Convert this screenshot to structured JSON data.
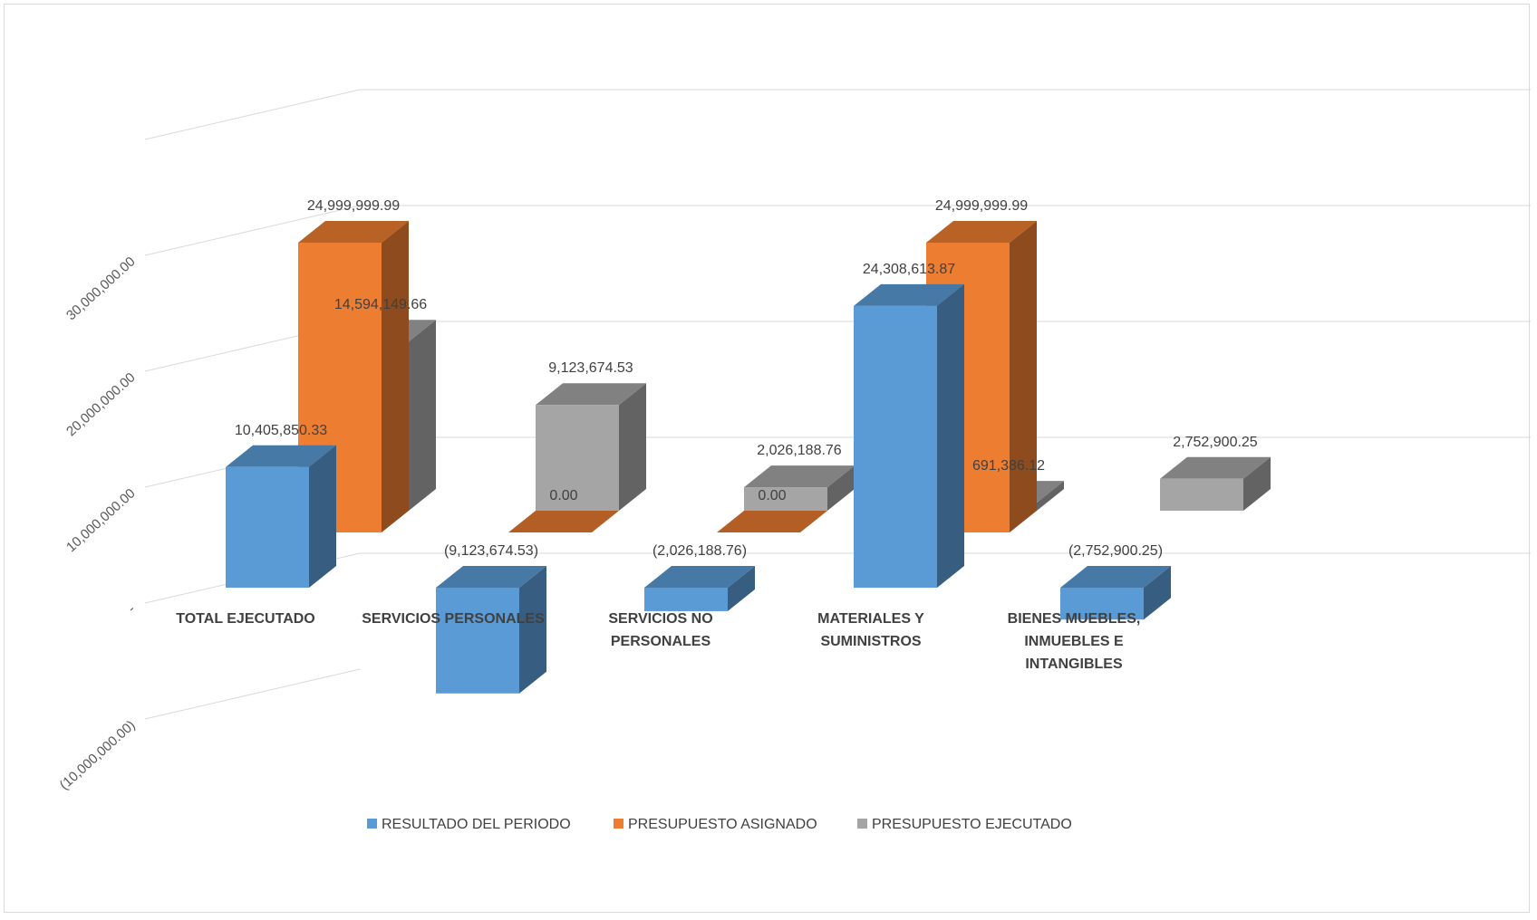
{
  "chart_data": {
    "type": "bar",
    "subtype": "3d-clustered-column",
    "title": "",
    "xlabel": "",
    "ylabel": "",
    "categories": [
      [
        "TOTAL EJECUTADO"
      ],
      [
        "SERVICIOS PERSONALES"
      ],
      [
        "SERVICIOS NO",
        "PERSONALES"
      ],
      [
        "MATERIALES Y",
        "SUMINISTROS"
      ],
      [
        "BIENES MUEBLES,",
        "INMUEBLES E",
        "INTANGIBLES"
      ]
    ],
    "ylim": [
      -10000000,
      30000000
    ],
    "y_ticks": [
      -10000000,
      0,
      10000000,
      20000000,
      30000000
    ],
    "y_tick_labels": [
      "(10,000,000.00)",
      "-",
      "10,000,000.00",
      "20,000,000.00",
      "30,000,000.00"
    ],
    "grid": true,
    "legend_position": "bottom",
    "series": [
      {
        "name": "RESULTADO DEL PERIODO",
        "color": "#5b9bd5",
        "values": [
          10405850.33,
          -9123674.53,
          -2026188.76,
          24308613.87,
          -2752900.25
        ],
        "labels": [
          "10,405,850.33",
          "(9,123,674.53)",
          "(2,026,188.76)",
          "24,308,613.87",
          "(2,752,900.25)"
        ]
      },
      {
        "name": "PRESUPUESTO ASIGNADO",
        "color": "#ed7d31",
        "values": [
          24999999.99,
          0,
          0,
          24999999.99,
          null
        ],
        "labels": [
          "24,999,999.99",
          "0.00",
          "0.00",
          "24,999,999.99",
          ""
        ]
      },
      {
        "name": "PRESUPUESTO EJECUTADO",
        "color": "#a5a5a5",
        "values": [
          14594149.66,
          9123674.53,
          2026188.76,
          691386.12,
          2752900.25
        ],
        "labels": [
          "14,594,149.66",
          "9,123,674.53",
          "2,026,188.76",
          "691,386.12",
          "2,752,900.25"
        ]
      }
    ]
  }
}
